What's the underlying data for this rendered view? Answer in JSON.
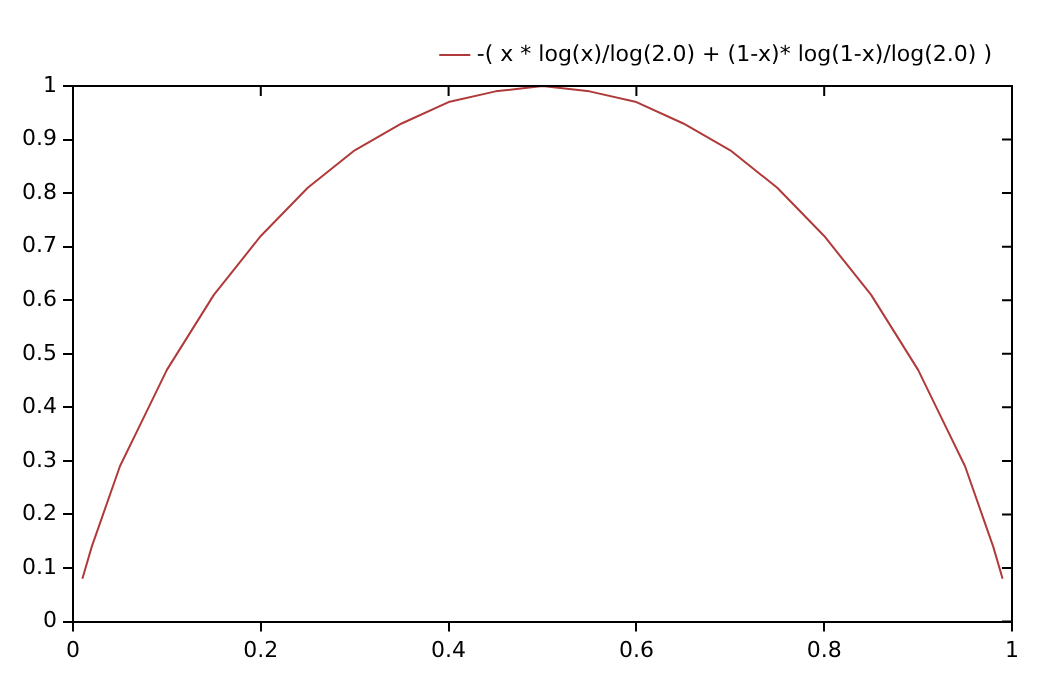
{
  "chart_data": {
    "type": "line",
    "x": [
      0.01,
      0.02,
      0.03,
      0.05,
      0.075,
      0.1,
      0.15,
      0.2,
      0.25,
      0.3,
      0.35,
      0.4,
      0.45,
      0.5,
      0.55,
      0.6,
      0.65,
      0.7,
      0.75,
      0.8,
      0.85,
      0.9,
      0.925,
      0.95,
      0.97,
      0.98,
      0.99
    ],
    "series": [
      {
        "name": "-( x * log(x)/log(2.0) + (1-x)* log(1-x)/log(2.0) )",
        "color": "#b03a3a",
        "values": [
          0.08,
          0.14,
          0.19,
          0.29,
          0.38,
          0.47,
          0.61,
          0.72,
          0.81,
          0.88,
          0.93,
          0.97,
          0.99,
          1,
          0.99,
          0.97,
          0.93,
          0.88,
          0.81,
          0.72,
          0.61,
          0.47,
          0.38,
          0.29,
          0.19,
          0.14,
          0.08
        ]
      }
    ],
    "xlim": [
      0,
      1
    ],
    "xticks": [
      0,
      0.2,
      0.4,
      0.6,
      0.8,
      1
    ],
    "ylim": [
      0,
      1
    ],
    "yticks": [
      0,
      0.1,
      0.2,
      0.3,
      0.4,
      0.5,
      0.6,
      0.7,
      0.8,
      0.9,
      1
    ],
    "grid": false,
    "legend": "top right",
    "marker": "none",
    "line_style": "solid"
  }
}
